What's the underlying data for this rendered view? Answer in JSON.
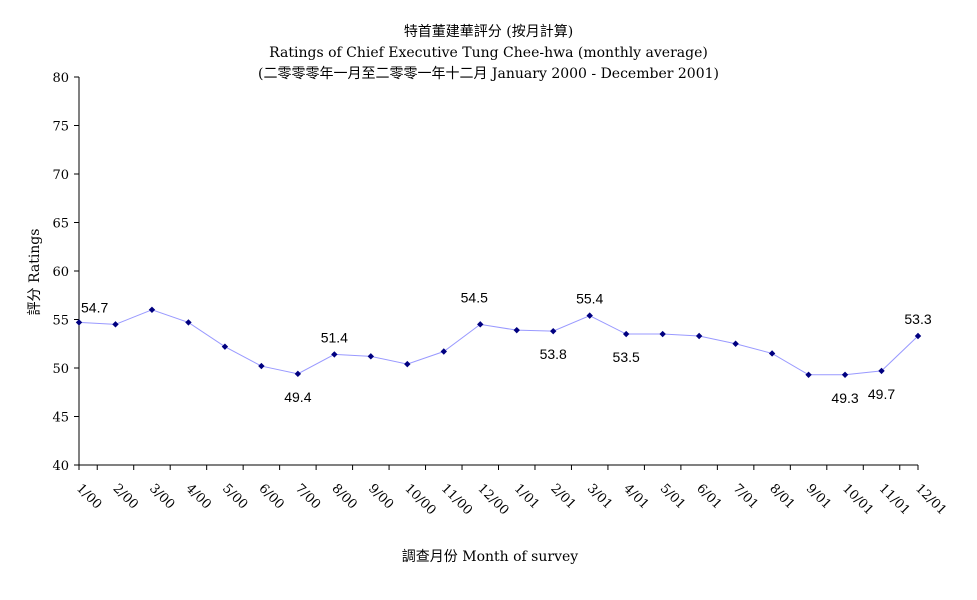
{
  "chart_data": {
    "type": "line",
    "title": "特首董建華評分 (按月計算)",
    "subtitle": "Ratings of Chief Executive Tung Chee-hwa (monthly average)",
    "subtitle2": "(二零零零年一月至二零零一年十二月 January 2000 - December 2001)",
    "xlabel": "調查月份 Month of survey",
    "ylabel": "評分 Ratings",
    "ylim": [
      40,
      80
    ],
    "yticks": [
      40,
      45,
      50,
      55,
      60,
      65,
      70,
      75,
      80
    ],
    "grid": false,
    "categories": [
      "1/00",
      "2/00",
      "3/00",
      "4/00",
      "5/00",
      "6/00",
      "7/00",
      "8/00",
      "9/00",
      "10/00",
      "11/00",
      "12/00",
      "1/01",
      "2/01",
      "3/01",
      "4/01",
      "5/01",
      "6/01",
      "7/01",
      "8/01",
      "9/01",
      "10/01",
      "11/01",
      "12/01"
    ],
    "series": [
      {
        "color": "#9999ff",
        "marker_color": "#000080",
        "values": [
          54.7,
          54.5,
          56.0,
          54.7,
          52.2,
          50.2,
          49.4,
          51.4,
          51.2,
          50.4,
          51.7,
          54.5,
          53.9,
          53.8,
          55.4,
          53.5,
          53.5,
          53.3,
          52.5,
          51.5,
          49.3,
          49.3,
          49.7,
          53.3
        ]
      }
    ],
    "annotations": [
      {
        "index": 0,
        "text": "54.7",
        "position": "above-right"
      },
      {
        "index": 6,
        "text": "49.4",
        "position": "below"
      },
      {
        "index": 7,
        "text": "51.4",
        "position": "above"
      },
      {
        "index": 11,
        "text": "54.5",
        "position": "above-left"
      },
      {
        "index": 13,
        "text": "53.8",
        "position": "below"
      },
      {
        "index": 14,
        "text": "55.4",
        "position": "above"
      },
      {
        "index": 15,
        "text": "53.5",
        "position": "below"
      },
      {
        "index": 21,
        "text": "49.3",
        "position": "below"
      },
      {
        "index": 22,
        "text": "49.7",
        "position": "below"
      },
      {
        "index": 23,
        "text": "53.3",
        "position": "above"
      }
    ]
  }
}
